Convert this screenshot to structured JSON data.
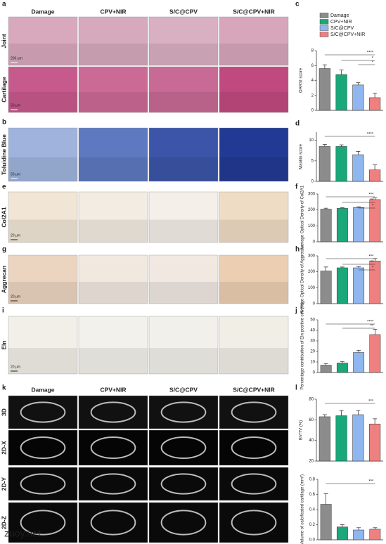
{
  "panel_letters": [
    "a",
    "b",
    "c",
    "d",
    "e",
    "f",
    "g",
    "h",
    "i",
    "j",
    "k",
    "l"
  ],
  "group_headers": [
    "Damage",
    "CPV+NIR",
    "S/C@CPV",
    "S/C@CPV+NIR"
  ],
  "group_headers_2": [
    "Damage",
    "CPV+NIR",
    "S/C@CPV",
    "S/C@CPV+NIR"
  ],
  "row_labels": [
    "Joint",
    "Cartilage",
    "Toluidine Blue",
    "Col2A1",
    "Aggrecan",
    "Eln",
    "3D",
    "2D-X",
    "2D-Y",
    "2D-Z"
  ],
  "scale_bars": [
    "200 μm",
    "50 μm",
    "50 μm",
    "20 μm",
    "20 μm",
    "20 μm"
  ],
  "watermark": "zuoy.net",
  "chart_data": [
    {
      "type": "bar",
      "categories": [
        "Damage",
        "CPV+NIR",
        "S/C@CPV",
        "S/C@CPV+NIR"
      ],
      "colors": [
        "#8c8c8c",
        "#1aa87a",
        "#8fb6ee",
        "#ef8080"
      ],
      "y_label": "OARSI score",
      "values": [
        5.6,
        4.8,
        3.4,
        1.7
      ],
      "errors": [
        0.5,
        0.6,
        0.3,
        0.6
      ],
      "ylim": [
        0,
        8
      ],
      "yticks": [
        0,
        2,
        4,
        6,
        8
      ],
      "annotations": [
        "****",
        "*",
        "*"
      ]
    },
    {
      "type": "bar",
      "colors": [
        "#8c8c8c",
        "#1aa87a",
        "#8fb6ee",
        "#ef8080"
      ],
      "y_label": "Mankin score",
      "values": [
        8.5,
        8.5,
        6.5,
        2.8
      ],
      "errors": [
        0.5,
        0.4,
        0.8,
        1.2
      ],
      "ylim": [
        0,
        12
      ],
      "yticks": [
        0,
        5,
        10
      ],
      "annotations": [
        "****"
      ]
    },
    {
      "type": "bar",
      "colors": [
        "#8c8c8c",
        "#1aa87a",
        "#8fb6ee",
        "#ef8080"
      ],
      "y_label": "Average Optical Density of Col2A1",
      "values": [
        205,
        210,
        215,
        265
      ],
      "errors": [
        6,
        4,
        5,
        10
      ],
      "ylim": [
        0,
        300
      ],
      "yticks": [
        0,
        100,
        200,
        300
      ],
      "annotations": [
        "***",
        "**",
        "*"
      ]
    },
    {
      "type": "bar",
      "colors": [
        "#8c8c8c",
        "#1aa87a",
        "#8fb6ee",
        "#ef8080"
      ],
      "y_label": "Average Optical Density of Aggrecan",
      "values": [
        205,
        225,
        225,
        268
      ],
      "errors": [
        25,
        5,
        8,
        15
      ],
      "ylim": [
        0,
        300
      ],
      "yticks": [
        0,
        100,
        200,
        300
      ],
      "annotations": [
        "***",
        "**",
        "*"
      ]
    },
    {
      "type": "bar",
      "colors": [
        "#8c8c8c",
        "#1aa87a",
        "#8fb6ee",
        "#ef8080"
      ],
      "y_label": "Percentage contribution of Eln positive cell (%)",
      "values": [
        7,
        9,
        19,
        36
      ],
      "errors": [
        1.5,
        1.5,
        2,
        5
      ],
      "ylim": [
        0,
        50
      ],
      "yticks": [
        0,
        10,
        20,
        30,
        40,
        50
      ],
      "annotations": [
        "****",
        "**"
      ]
    },
    {
      "type": "bar",
      "colors": [
        "#8c8c8c",
        "#1aa87a",
        "#8fb6ee",
        "#ef8080"
      ],
      "y_label": "BV/TV (%)",
      "values": [
        63,
        64,
        65,
        56
      ],
      "errors": [
        2,
        5,
        4,
        5
      ],
      "ylim": [
        20,
        80
      ],
      "yticks": [
        20,
        40,
        60,
        80
      ],
      "annotations": [
        "***"
      ]
    },
    {
      "type": "bar",
      "colors": [
        "#8c8c8c",
        "#1aa87a",
        "#8fb6ee",
        "#ef8080"
      ],
      "y_label": "Volume of calcificated cartilage (mm³)",
      "values": [
        0.47,
        0.17,
        0.13,
        0.14
      ],
      "errors": [
        0.14,
        0.03,
        0.03,
        0.02
      ],
      "ylim": [
        0,
        0.8
      ],
      "yticks": [
        {
          "value": 0,
          "label": "0.0"
        },
        0.2,
        0.4,
        0.6,
        0.8
      ],
      "annotations": [
        "***"
      ]
    }
  ]
}
